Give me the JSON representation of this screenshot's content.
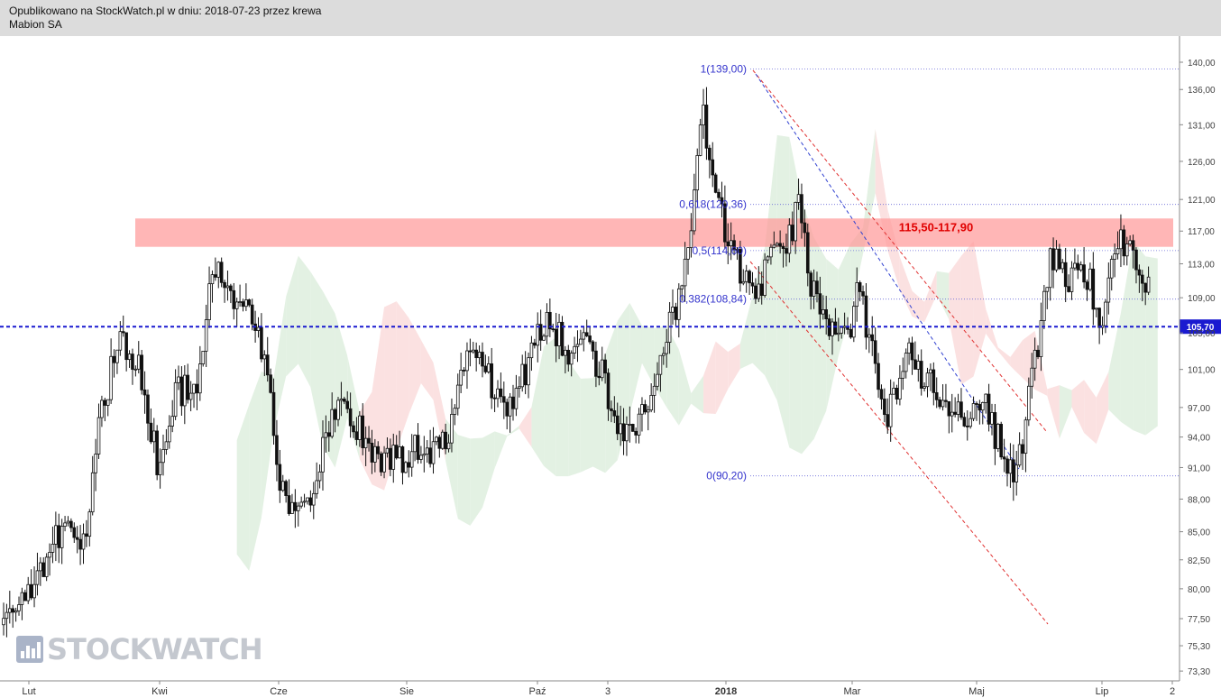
{
  "header": {
    "published": "Opublikowano na StockWatch.pl w dniu: 2018-07-23 przez krewa",
    "instrument": "Mabion SA"
  },
  "watermark": {
    "text": "STOCKWATCH",
    "icon": "bar-chart-icon"
  },
  "chart_data": {
    "type": "candlestick",
    "title": "Mabion SA",
    "y_axis": {
      "side": "right",
      "scale": "log",
      "range": [
        72.5,
        142
      ],
      "ticks": [
        "140,00",
        "136,00",
        "131,00",
        "126,00",
        "121,00",
        "117,00",
        "113,00",
        "109,00",
        "105,00",
        "101,00",
        "97,00",
        "94,00",
        "91,00",
        "88,00",
        "85,00",
        "82,50",
        "80,00",
        "77,50",
        "75,30",
        "73,30"
      ]
    },
    "x_axis": {
      "ticks": [
        {
          "label": "Lut",
          "bold": false
        },
        {
          "label": "Kwi",
          "bold": false
        },
        {
          "label": "Cze",
          "bold": false
        },
        {
          "label": "Sie",
          "bold": false
        },
        {
          "label": "Paź",
          "bold": false
        },
        {
          "label": "3",
          "bold": false
        },
        {
          "label": "2018",
          "bold": true
        },
        {
          "label": "Mar",
          "bold": false
        },
        {
          "label": "Maj",
          "bold": false
        },
        {
          "label": "Lip",
          "bold": false
        },
        {
          "label": "2",
          "bold": false
        }
      ]
    },
    "last_price": {
      "value": 105.7,
      "label": "105,70"
    },
    "resistance_zone": {
      "low": 115.5,
      "high": 117.9,
      "label": "115,50-117,90"
    },
    "fibonacci": [
      {
        "ratio": "1",
        "value": 139.0,
        "label": "1(139,00)"
      },
      {
        "ratio": "0,618",
        "value": 120.36,
        "label": "0,618(120,36)"
      },
      {
        "ratio": "0,5",
        "value": 114.6,
        "label": "0,5(114,60)"
      },
      {
        "ratio": "0,382",
        "value": 108.84,
        "label": "0,382(108,84)"
      },
      {
        "ratio": "0",
        "value": 90.2,
        "label": "0(90,20)"
      }
    ],
    "price_path": [
      [
        0,
        77
      ],
      [
        3,
        80
      ],
      [
        5,
        84
      ],
      [
        7,
        85
      ],
      [
        8,
        82
      ],
      [
        10,
        96
      ],
      [
        12,
        105
      ],
      [
        14,
        101
      ],
      [
        16,
        91
      ],
      [
        18,
        99
      ],
      [
        20,
        98
      ],
      [
        21,
        108
      ],
      [
        22,
        112
      ],
      [
        24,
        109
      ],
      [
        26,
        105
      ],
      [
        27,
        103
      ],
      [
        28,
        92
      ],
      [
        29,
        88
      ],
      [
        31,
        87
      ],
      [
        33,
        93
      ],
      [
        35,
        98
      ],
      [
        36,
        96
      ],
      [
        38,
        93
      ],
      [
        39,
        92
      ],
      [
        41,
        92
      ],
      [
        43,
        93
      ],
      [
        44,
        92
      ],
      [
        46,
        94
      ],
      [
        48,
        104
      ],
      [
        50,
        100
      ],
      [
        52,
        97
      ],
      [
        54,
        101
      ],
      [
        56,
        107
      ],
      [
        58,
        103
      ],
      [
        60,
        104
      ],
      [
        62,
        100
      ],
      [
        63,
        95
      ],
      [
        65,
        94
      ],
      [
        67,
        98
      ],
      [
        68,
        103
      ],
      [
        70,
        111
      ],
      [
        71,
        117
      ],
      [
        72,
        135
      ],
      [
        73,
        125
      ],
      [
        74,
        119
      ],
      [
        75,
        115
      ],
      [
        76,
        112
      ],
      [
        78,
        110
      ],
      [
        79,
        113
      ],
      [
        81,
        116
      ],
      [
        82,
        121
      ],
      [
        83,
        112
      ],
      [
        85,
        105
      ],
      [
        87,
        104
      ],
      [
        88,
        110
      ],
      [
        89,
        106
      ],
      [
        91,
        95
      ],
      [
        93,
        103
      ],
      [
        95,
        100
      ],
      [
        97,
        98
      ],
      [
        98,
        97
      ],
      [
        100,
        96
      ],
      [
        101,
        98
      ],
      [
        102,
        95
      ],
      [
        104,
        91
      ],
      [
        105,
        92
      ],
      [
        106,
        101
      ],
      [
        107,
        105
      ],
      [
        108,
        114
      ],
      [
        110,
        111
      ],
      [
        112,
        112
      ],
      [
        113,
        106
      ],
      [
        115,
        115
      ],
      [
        116,
        116
      ],
      [
        117,
        111
      ],
      [
        118,
        110
      ],
      [
        119,
        113
      ],
      [
        120,
        112
      ]
    ]
  }
}
